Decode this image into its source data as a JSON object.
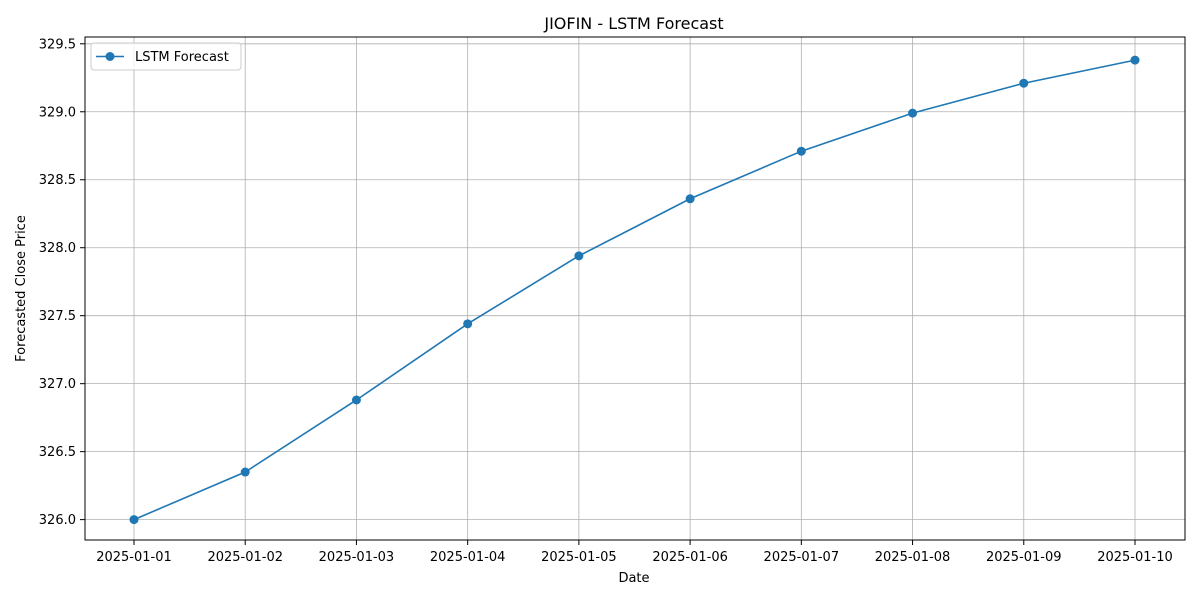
{
  "chart_data": {
    "type": "line",
    "title": "JIOFIN - LSTM Forecast",
    "xlabel": "Date",
    "ylabel": "Forecasted Close Price",
    "x": [
      "2025-01-01",
      "2025-01-02",
      "2025-01-03",
      "2025-01-04",
      "2025-01-05",
      "2025-01-06",
      "2025-01-07",
      "2025-01-08",
      "2025-01-09",
      "2025-01-10"
    ],
    "series": [
      {
        "name": "LSTM Forecast",
        "values": [
          326.0,
          326.35,
          326.88,
          327.44,
          327.94,
          328.36,
          328.71,
          328.99,
          329.21,
          329.38
        ]
      }
    ],
    "yticks": [
      "326.0",
      "326.5",
      "327.0",
      "327.5",
      "328.0",
      "328.5",
      "329.0",
      "329.5"
    ],
    "ylim": [
      325.85,
      329.55
    ],
    "grid": true,
    "legend_position": "upper-left",
    "colors": {
      "series": "#1f77b4",
      "grid": "#b0b0b0",
      "axes": "#000000"
    }
  }
}
